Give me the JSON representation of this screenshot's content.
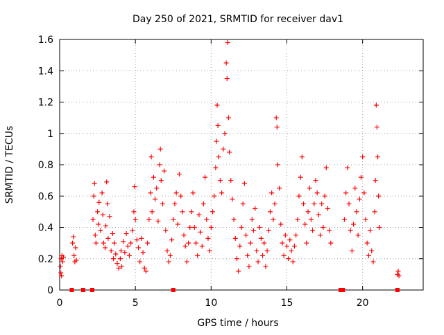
{
  "chart_data": {
    "type": "scatter",
    "title": "Day 250 of 2021, SRMTID for receiver dav1",
    "xlabel": "GPS time / hours",
    "ylabel": "SRMTID / TECUs",
    "xlim": [
      0,
      24
    ],
    "ylim": [
      0,
      1.6
    ],
    "xticks": [
      0,
      5,
      10,
      15,
      20
    ],
    "xtick_labels": [
      "0",
      "5",
      "10",
      "15",
      "20"
    ],
    "yticks": [
      0,
      0.2,
      0.4,
      0.6,
      0.8,
      1.0,
      1.2,
      1.4,
      1.6
    ],
    "ytick_labels": [
      "0",
      "0.2",
      "0.4",
      "0.6",
      "0.8",
      "1",
      "1.2",
      "1.4",
      "1.6"
    ],
    "grid": true,
    "marker": "+",
    "series_color": "#ff0000",
    "series": [
      {
        "name": "dav1",
        "points": [
          [
            0.05,
            0.15
          ],
          [
            0.08,
            0.11
          ],
          [
            0.1,
            0.2
          ],
          [
            0.12,
            0.09
          ],
          [
            0.15,
            0.22
          ],
          [
            0.2,
            0.18
          ],
          [
            0.25,
            0.21
          ],
          [
            0.85,
            0.3
          ],
          [
            0.9,
            0.34
          ],
          [
            0.95,
            0.22
          ],
          [
            1.0,
            0.18
          ],
          [
            1.05,
            0.27
          ],
          [
            1.1,
            0.19
          ],
          [
            2.2,
            0.45
          ],
          [
            2.25,
            0.6
          ],
          [
            2.3,
            0.68
          ],
          [
            2.35,
            0.35
          ],
          [
            2.4,
            0.3
          ],
          [
            2.5,
            0.5
          ],
          [
            2.55,
            0.42
          ],
          [
            2.6,
            0.56
          ],
          [
            2.7,
            0.38
          ],
          [
            2.8,
            0.62
          ],
          [
            2.85,
            0.48
          ],
          [
            2.9,
            0.3
          ],
          [
            3.0,
            0.27
          ],
          [
            3.05,
            0.41
          ],
          [
            3.1,
            0.69
          ],
          [
            3.15,
            0.55
          ],
          [
            3.2,
            0.33
          ],
          [
            3.3,
            0.47
          ],
          [
            3.4,
            0.25
          ],
          [
            3.5,
            0.36
          ],
          [
            3.55,
            0.2
          ],
          [
            3.6,
            0.3
          ],
          [
            3.7,
            0.23
          ],
          [
            3.8,
            0.17
          ],
          [
            3.9,
            0.14
          ],
          [
            4.0,
            0.2
          ],
          [
            4.05,
            0.25
          ],
          [
            4.1,
            0.15
          ],
          [
            4.2,
            0.31
          ],
          [
            4.3,
            0.24
          ],
          [
            4.4,
            0.36
          ],
          [
            4.5,
            0.28
          ],
          [
            4.6,
            0.22
          ],
          [
            4.7,
            0.3
          ],
          [
            4.8,
            0.38
          ],
          [
            4.9,
            0.5
          ],
          [
            4.95,
            0.66
          ],
          [
            5.0,
            0.45
          ],
          [
            5.1,
            0.32
          ],
          [
            5.2,
            0.27
          ],
          [
            5.3,
            0.18
          ],
          [
            5.4,
            0.33
          ],
          [
            5.5,
            0.24
          ],
          [
            5.6,
            0.14
          ],
          [
            5.7,
            0.12
          ],
          [
            5.8,
            0.3
          ],
          [
            5.9,
            0.45
          ],
          [
            6.0,
            0.62
          ],
          [
            6.05,
            0.85
          ],
          [
            6.1,
            0.5
          ],
          [
            6.2,
            0.72
          ],
          [
            6.3,
            0.58
          ],
          [
            6.4,
            0.65
          ],
          [
            6.5,
            0.44
          ],
          [
            6.6,
            0.8
          ],
          [
            6.65,
            0.9
          ],
          [
            6.7,
            0.7
          ],
          [
            6.8,
            0.55
          ],
          [
            6.9,
            0.76
          ],
          [
            7.0,
            0.38
          ],
          [
            7.1,
            0.25
          ],
          [
            7.2,
            0.18
          ],
          [
            7.3,
            0.22
          ],
          [
            7.4,
            0.32
          ],
          [
            7.5,
            0.45
          ],
          [
            7.6,
            0.55
          ],
          [
            7.7,
            0.62
          ],
          [
            7.8,
            0.42
          ],
          [
            7.9,
            0.74
          ],
          [
            8.0,
            0.6
          ],
          [
            8.1,
            0.5
          ],
          [
            8.2,
            0.35
          ],
          [
            8.3,
            0.28
          ],
          [
            8.4,
            0.18
          ],
          [
            8.5,
            0.3
          ],
          [
            8.6,
            0.4
          ],
          [
            8.7,
            0.5
          ],
          [
            8.8,
            0.62
          ],
          [
            8.9,
            0.4
          ],
          [
            9.0,
            0.3
          ],
          [
            9.1,
            0.22
          ],
          [
            9.2,
            0.48
          ],
          [
            9.3,
            0.37
          ],
          [
            9.4,
            0.28
          ],
          [
            9.5,
            0.55
          ],
          [
            9.6,
            0.72
          ],
          [
            9.7,
            0.45
          ],
          [
            9.8,
            0.33
          ],
          [
            9.9,
            0.25
          ],
          [
            10.0,
            0.4
          ],
          [
            10.1,
            0.5
          ],
          [
            10.2,
            0.6
          ],
          [
            10.3,
            0.78
          ],
          [
            10.35,
            0.95
          ],
          [
            10.4,
            1.18
          ],
          [
            10.45,
            1.05
          ],
          [
            10.5,
            0.85
          ],
          [
            10.6,
            0.7
          ],
          [
            10.7,
            0.62
          ],
          [
            10.8,
            0.9
          ],
          [
            10.9,
            1.0
          ],
          [
            11.0,
            1.45
          ],
          [
            11.05,
            1.35
          ],
          [
            11.1,
            1.58
          ],
          [
            11.15,
            1.1
          ],
          [
            11.2,
            0.88
          ],
          [
            11.3,
            0.7
          ],
          [
            11.4,
            0.58
          ],
          [
            11.5,
            0.45
          ],
          [
            11.6,
            0.33
          ],
          [
            11.7,
            0.2
          ],
          [
            11.8,
            0.12
          ],
          [
            11.9,
            0.28
          ],
          [
            12.0,
            0.4
          ],
          [
            12.1,
            0.55
          ],
          [
            12.2,
            0.68
          ],
          [
            12.3,
            0.35
          ],
          [
            12.4,
            0.22
          ],
          [
            12.5,
            0.15
          ],
          [
            12.6,
            0.3
          ],
          [
            12.7,
            0.45
          ],
          [
            12.8,
            0.38
          ],
          [
            12.9,
            0.52
          ],
          [
            13.0,
            0.25
          ],
          [
            13.1,
            0.18
          ],
          [
            13.2,
            0.4
          ],
          [
            13.3,
            0.33
          ],
          [
            13.4,
            0.22
          ],
          [
            13.5,
            0.3
          ],
          [
            13.6,
            0.15
          ],
          [
            13.7,
            0.25
          ],
          [
            13.8,
            0.38
          ],
          [
            13.9,
            0.5
          ],
          [
            14.0,
            0.62
          ],
          [
            14.1,
            0.45
          ],
          [
            14.2,
            0.55
          ],
          [
            14.3,
            1.1
          ],
          [
            14.35,
            1.04
          ],
          [
            14.4,
            0.8
          ],
          [
            14.5,
            0.65
          ],
          [
            14.6,
            0.42
          ],
          [
            14.7,
            0.3
          ],
          [
            14.8,
            0.22
          ],
          [
            14.9,
            0.35
          ],
          [
            15.0,
            0.28
          ],
          [
            15.1,
            0.2
          ],
          [
            15.2,
            0.32
          ],
          [
            15.3,
            0.25
          ],
          [
            15.4,
            0.18
          ],
          [
            15.5,
            0.28
          ],
          [
            15.6,
            0.35
          ],
          [
            15.7,
            0.45
          ],
          [
            15.8,
            0.6
          ],
          [
            15.9,
            0.72
          ],
          [
            16.0,
            0.85
          ],
          [
            16.1,
            0.55
          ],
          [
            16.2,
            0.42
          ],
          [
            16.3,
            0.3
          ],
          [
            16.4,
            0.5
          ],
          [
            16.5,
            0.65
          ],
          [
            16.6,
            0.45
          ],
          [
            16.7,
            0.38
          ],
          [
            16.8,
            0.55
          ],
          [
            16.9,
            0.7
          ],
          [
            17.0,
            0.62
          ],
          [
            17.1,
            0.48
          ],
          [
            17.2,
            0.35
          ],
          [
            17.3,
            0.55
          ],
          [
            17.4,
            0.4
          ],
          [
            17.5,
            0.6
          ],
          [
            17.6,
            0.78
          ],
          [
            17.7,
            0.52
          ],
          [
            17.8,
            0.38
          ],
          [
            17.9,
            0.3
          ],
          [
            18.8,
            0.45
          ],
          [
            18.9,
            0.62
          ],
          [
            19.0,
            0.78
          ],
          [
            19.1,
            0.55
          ],
          [
            19.2,
            0.38
          ],
          [
            19.3,
            0.25
          ],
          [
            19.4,
            0.42
          ],
          [
            19.5,
            0.65
          ],
          [
            19.6,
            0.5
          ],
          [
            19.7,
            0.35
          ],
          [
            19.8,
            0.58
          ],
          [
            19.9,
            0.72
          ],
          [
            20.0,
            0.85
          ],
          [
            20.1,
            0.62
          ],
          [
            20.2,
            0.45
          ],
          [
            20.3,
            0.3
          ],
          [
            20.4,
            0.22
          ],
          [
            20.5,
            0.38
          ],
          [
            20.6,
            0.25
          ],
          [
            20.7,
            0.18
          ],
          [
            20.8,
            0.5
          ],
          [
            20.85,
            0.7
          ],
          [
            20.9,
            1.18
          ],
          [
            20.95,
            1.04
          ],
          [
            21.0,
            0.85
          ],
          [
            21.05,
            0.6
          ],
          [
            21.1,
            0.4
          ],
          [
            22.3,
            0.1
          ],
          [
            22.35,
            0.12
          ],
          [
            22.4,
            0.09
          ]
        ]
      }
    ],
    "zero_markers_x": [
      0.8,
      1.55,
      2.15,
      7.5,
      18.55,
      18.7,
      22.3
    ]
  }
}
